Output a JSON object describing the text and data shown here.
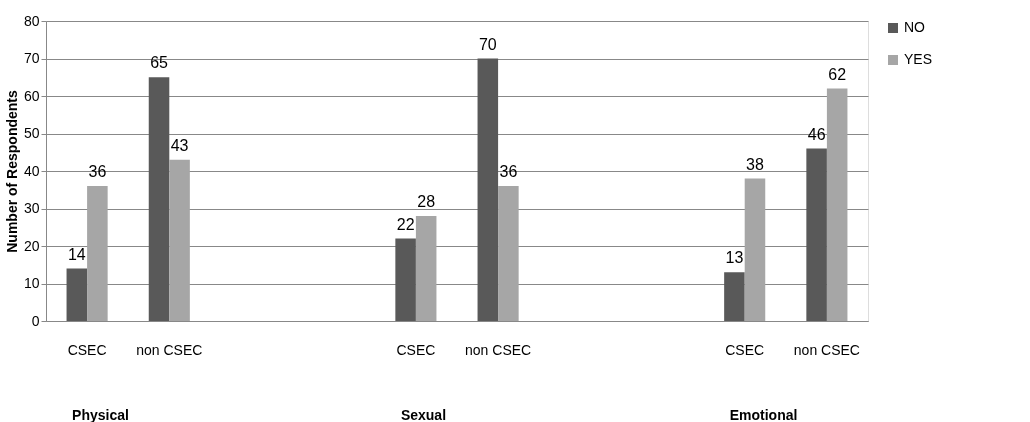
{
  "chart_data": {
    "type": "bar",
    "ylabel": "Number of Respondents",
    "categories": [
      "CSEC",
      "non CSEC",
      null,
      null,
      "CSEC",
      "non CSEC",
      null,
      null,
      "CSEC",
      "non CSEC"
    ],
    "series": [
      {
        "name": "NO",
        "color": "#595959",
        "values": [
          14,
          65,
          null,
          null,
          22,
          70,
          null,
          null,
          13,
          46
        ]
      },
      {
        "name": "YES",
        "color": "#a6a6a6",
        "values": [
          36,
          43,
          null,
          null,
          28,
          36,
          null,
          null,
          38,
          62
        ]
      }
    ],
    "ylim": [
      0,
      80
    ],
    "yticks": [
      0,
      10,
      20,
      30,
      40,
      50,
      60,
      70,
      80
    ],
    "grid": "y",
    "legend": "right",
    "data_labels": true,
    "annotations": [
      "Physical",
      "Sexual",
      "Emotional"
    ]
  }
}
